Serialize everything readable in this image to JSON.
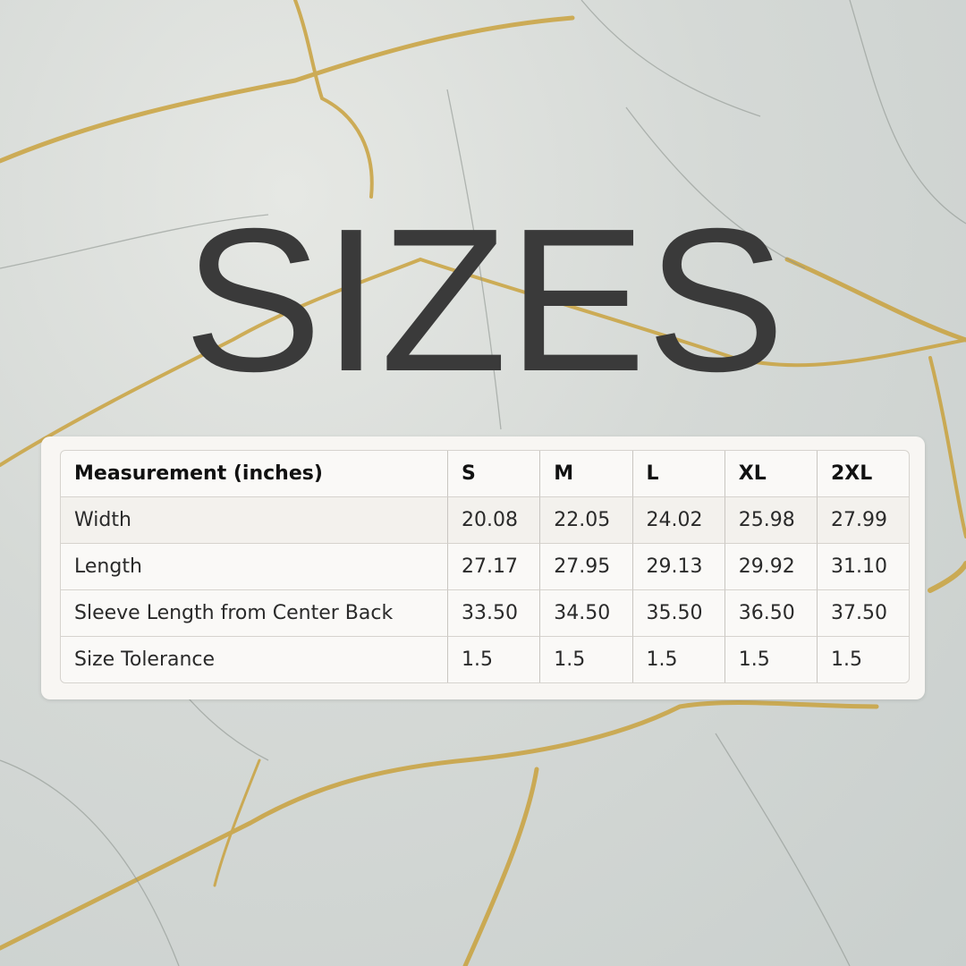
{
  "title": "SIZES",
  "colors": {
    "text": "#3a3a3a",
    "vein": "#c9a23e",
    "card": "#f8f6f3"
  },
  "table": {
    "headers": [
      "Measurement (inches)",
      "S",
      "M",
      "L",
      "XL",
      "2XL"
    ],
    "rows": [
      {
        "label": "Width",
        "values": [
          "20.08",
          "22.05",
          "24.02",
          "25.98",
          "27.99"
        ]
      },
      {
        "label": "Length",
        "values": [
          "27.17",
          "27.95",
          "29.13",
          "29.92",
          "31.10"
        ]
      },
      {
        "label": "Sleeve Length from Center Back",
        "values": [
          "33.50",
          "34.50",
          "35.50",
          "36.50",
          "37.50"
        ]
      },
      {
        "label": "Size Tolerance",
        "values": [
          "1.5",
          "1.5",
          "1.5",
          "1.5",
          "1.5"
        ]
      }
    ]
  }
}
